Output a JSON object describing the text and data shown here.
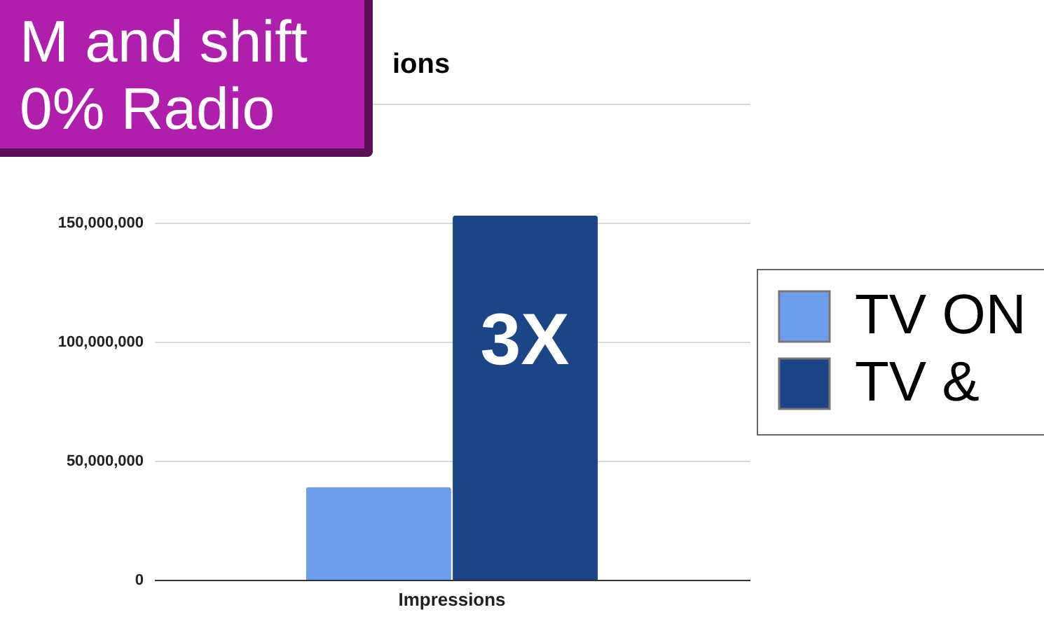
{
  "chart_data": {
    "type": "bar",
    "title": "ions",
    "categories": [
      "Impressions"
    ],
    "series": [
      {
        "name": "TV ON",
        "color": "#6d9eeb",
        "values": [
          39000000
        ]
      },
      {
        "name": "TV &",
        "color": "#1c4587",
        "values": [
          153000000
        ]
      }
    ],
    "ylim": [
      0,
      200000000
    ],
    "yticks": [
      0,
      {
        "value": 50000000,
        "label": "50,000,000"
      },
      {
        "value": 100000000,
        "label": "100,000,000"
      },
      {
        "value": 150000000,
        "label": "150,000,000"
      },
      {
        "value": 200000000,
        "label": null
      }
    ],
    "grid": "y",
    "legend": "right",
    "annotations": [
      "M and shift",
      "0% Radio",
      {
        "text": "3X",
        "x": "Impressions",
        "y": 100000000
      }
    ]
  }
}
